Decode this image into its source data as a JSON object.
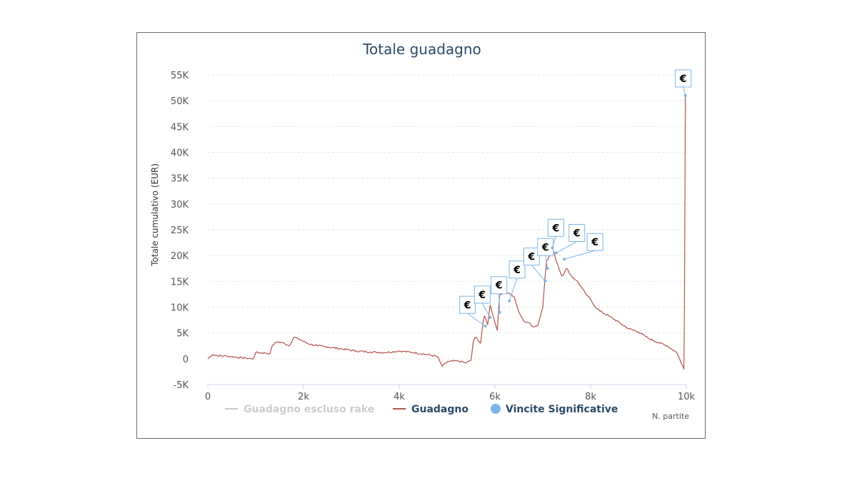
{
  "chart_data": {
    "type": "line",
    "title": "Totale guadagno",
    "ylabel": "Totale cumulativo (EUR)",
    "xlabel": "N. partite",
    "ylim": [
      -5000,
      55000
    ],
    "xlim": [
      0,
      10000
    ],
    "y_ticks": [
      -5000,
      0,
      5000,
      10000,
      15000,
      20000,
      25000,
      30000,
      35000,
      40000,
      45000,
      50000,
      55000
    ],
    "y_tick_labels": [
      "-5K",
      "0",
      "5K",
      "10K",
      "15K",
      "20K",
      "25K",
      "30K",
      "35K",
      "40K",
      "45K",
      "50K",
      "55K"
    ],
    "x_ticks": [
      0,
      2000,
      4000,
      6000,
      8000,
      10000
    ],
    "x_tick_labels": [
      "0",
      "2k",
      "4k",
      "6k",
      "8k",
      "10k"
    ],
    "grid": true,
    "legend_position": "bottom",
    "legend": [
      {
        "label": "Guadagno escluso rake",
        "color": "#c8c8c8",
        "symbol": "line"
      },
      {
        "label": "Guadagno",
        "color": "#b5534f",
        "symbol": "line"
      },
      {
        "label": "Vincite Significative",
        "color": "#7cb5ec",
        "symbol": "circle"
      }
    ],
    "series": [
      {
        "name": "Guadagno",
        "color": "#b5534f",
        "points": [
          [
            0,
            0
          ],
          [
            100,
            800
          ],
          [
            200,
            600
          ],
          [
            400,
            500
          ],
          [
            600,
            300
          ],
          [
            800,
            100
          ],
          [
            950,
            0
          ],
          [
            1000,
            1200
          ],
          [
            1200,
            1100
          ],
          [
            1300,
            1000
          ],
          [
            1350,
            2600
          ],
          [
            1450,
            3300
          ],
          [
            1600,
            3000
          ],
          [
            1700,
            2500
          ],
          [
            1800,
            4200
          ],
          [
            1950,
            3600
          ],
          [
            2100,
            2900
          ],
          [
            2300,
            2500
          ],
          [
            2500,
            2300
          ],
          [
            2800,
            1900
          ],
          [
            3100,
            1500
          ],
          [
            3400,
            1300
          ],
          [
            3700,
            1200
          ],
          [
            4000,
            1500
          ],
          [
            4300,
            1200
          ],
          [
            4600,
            800
          ],
          [
            4800,
            400
          ],
          [
            4900,
            -1500
          ],
          [
            5000,
            -600
          ],
          [
            5200,
            -400
          ],
          [
            5400,
            -800
          ],
          [
            5500,
            -300
          ],
          [
            5550,
            3500
          ],
          [
            5600,
            4200
          ],
          [
            5700,
            3000
          ],
          [
            5750,
            7000
          ],
          [
            5780,
            8300
          ],
          [
            5850,
            6600
          ],
          [
            5900,
            10400
          ],
          [
            6000,
            7000
          ],
          [
            6050,
            5500
          ],
          [
            6080,
            10000
          ],
          [
            6100,
            12400
          ],
          [
            6200,
            13000
          ],
          [
            6300,
            12700
          ],
          [
            6400,
            12000
          ],
          [
            6500,
            9000
          ],
          [
            6600,
            7300
          ],
          [
            6700,
            7000
          ],
          [
            6800,
            6200
          ],
          [
            6900,
            6500
          ],
          [
            7000,
            10000
          ],
          [
            7050,
            16000
          ],
          [
            7080,
            19000
          ],
          [
            7150,
            20000
          ],
          [
            7200,
            21500
          ],
          [
            7300,
            18500
          ],
          [
            7400,
            16000
          ],
          [
            7500,
            17500
          ],
          [
            7600,
            16000
          ],
          [
            7700,
            15200
          ],
          [
            7800,
            14000
          ],
          [
            7900,
            12500
          ],
          [
            8000,
            11500
          ],
          [
            8100,
            10000
          ],
          [
            8200,
            9200
          ],
          [
            8400,
            8200
          ],
          [
            8600,
            7000
          ],
          [
            8800,
            5800
          ],
          [
            9000,
            5200
          ],
          [
            9200,
            4000
          ],
          [
            9400,
            3200
          ],
          [
            9600,
            2500
          ],
          [
            9800,
            1200
          ],
          [
            9950,
            -2000
          ],
          [
            9960,
            8000
          ],
          [
            9980,
            51000
          ]
        ]
      }
    ],
    "markers": [
      {
        "label": "€",
        "x": 5800,
        "y": 6300
      },
      {
        "label": "€",
        "x": 5900,
        "y": 8000
      },
      {
        "label": "€",
        "x": 6100,
        "y": 9000
      },
      {
        "label": "€",
        "x": 6300,
        "y": 11200
      },
      {
        "label": "€",
        "x": 7050,
        "y": 15100
      },
      {
        "label": "€",
        "x": 7100,
        "y": 17500
      },
      {
        "label": "€",
        "x": 7200,
        "y": 21500
      },
      {
        "label": "€",
        "x": 7280,
        "y": 20500
      },
      {
        "label": "€",
        "x": 7450,
        "y": 19300
      },
      {
        "label": "€",
        "x": 9980,
        "y": 51000
      }
    ]
  }
}
